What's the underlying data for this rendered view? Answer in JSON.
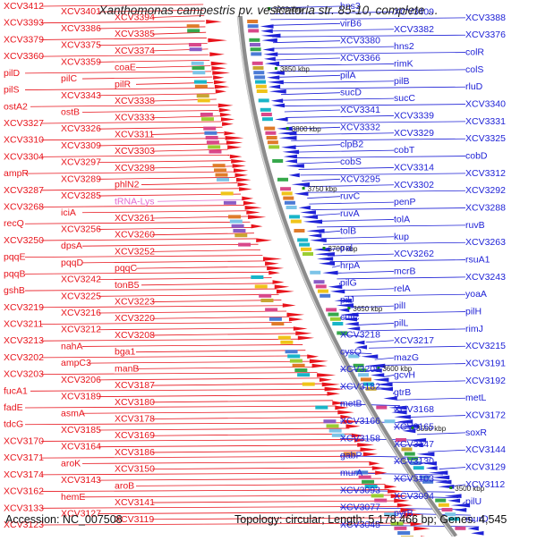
{
  "title": "Xanthomonas campestris pv. vesicatoria str. 85-10, complete ...",
  "footer": {
    "accession": "Accession: NC_007508",
    "summary": "Topology: circular; Length: 5,178,466 bp; Genes: 4,545"
  },
  "colors": {
    "left_genes": "#e8141c",
    "right_genes": "#1f22d6",
    "trna": "#e26ad0",
    "kbp_marker": "#1a8a1a",
    "backbone": "#8c8c8c"
  },
  "kbp_labels": [
    "3900 kbp",
    "3850 kbp",
    "3800 kbp",
    "3750 kbp",
    "3700 kbp",
    "3650 kbp",
    "3600 kbp",
    "3550 kbp",
    "3500 kbp"
  ],
  "left_labels": [
    "XCV3412",
    "XCV3401",
    "XCV3394",
    "XCV3393",
    "XCV3386",
    "XCV3385",
    "XCV3379",
    "XCV3375",
    "XCV3374",
    "XCV3360",
    "XCV3359",
    "coaE",
    "pilD",
    "pilC",
    "pilR",
    "pilS",
    "XCV3343",
    "XCV3338",
    "ostA2",
    "ostB",
    "XCV3333",
    "XCV3327",
    "XCV3326",
    "XCV3311",
    "XCV3310",
    "XCV3309",
    "XCV3303",
    "XCV3304",
    "XCV3297",
    "XCV3298",
    "ampR",
    "XCV3289",
    "phlN2",
    "XCV3287",
    "XCV3285",
    "tRNA-Lys",
    "XCV3268",
    "iciA",
    "XCV3261",
    "recQ",
    "XCV3256",
    "XCV3260",
    "XCV3250",
    "dpsA",
    "XCV3252",
    "pqqE",
    "pqqD",
    "pqqC",
    "pqqB",
    "XCV3242",
    "tonB5",
    "gshB",
    "XCV3225",
    "XCV3223",
    "XCV3219",
    "XCV3216",
    "XCV3220",
    "XCV3211",
    "XCV3212",
    "XCV3208",
    "XCV3213",
    "nahA",
    "bga1",
    "XCV3202",
    "ampC3",
    "manB",
    "XCV3203",
    "XCV3206",
    "XCV3187",
    "fucA1",
    "XCV3189",
    "XCV3180",
    "fadE",
    "asmA",
    "XCV3178",
    "tdcG",
    "XCV3185",
    "XCV3169",
    "XCV3170",
    "XCV3164",
    "XCV3186",
    "XCV3171",
    "aroK",
    "XCV3150",
    "XCV3174",
    "XCV3143",
    "aroB",
    "XCV3162",
    "hemE",
    "XCV3141",
    "XCV3133",
    "XCV3127",
    "XCV3119",
    "XCV3123"
  ],
  "right_labels": [
    "hns3",
    "XCV3409",
    "XCV3388",
    "virB6",
    "XCV3382",
    "XCV3376",
    "XCV3380",
    "hns2",
    "colR",
    "XCV3366",
    "rimK",
    "colS",
    "pilA",
    "pilB",
    "rluD",
    "sucD",
    "sucC",
    "XCV3340",
    "XCV3341",
    "XCV3339",
    "XCV3331",
    "XCV3332",
    "XCV3329",
    "XCV3325",
    "clpB2",
    "cobT",
    "cobD",
    "cobS",
    "XCV3314",
    "XCV3312",
    "XCV3295",
    "XCV3302",
    "XCV3292",
    "ruvC",
    "penP",
    "XCV3288",
    "ruvA",
    "tolA",
    "ruvB",
    "tolB",
    "kup",
    "XCV3263",
    "pal",
    "XCV3262",
    "rsuA1",
    "hrpA",
    "mcrB",
    "XCV3243",
    "pilG",
    "relA",
    "yoaA",
    "pilJ",
    "pilI",
    "pilH",
    "cutC",
    "pilL",
    "rimJ",
    "XCV3218",
    "XCV3217",
    "XCV3215",
    "cysQ",
    "mazG",
    "XCV3191",
    "XCV3205",
    "gcvH",
    "XCV3192",
    "XCV3182",
    "gtrB",
    "metL",
    "metB",
    "XCV3168",
    "XCV3172",
    "XCV3166",
    "XCV3165",
    "soxR",
    "XCV3158",
    "XCV3147",
    "XCV3144",
    "gabP",
    "XCV3130",
    "XCV3129",
    "murA",
    "XCV3103",
    "XCV3112",
    "XCV3093",
    "XCV3094",
    "pilU",
    "XCV3077",
    "pyrB",
    "murD",
    "XCV3045"
  ]
}
